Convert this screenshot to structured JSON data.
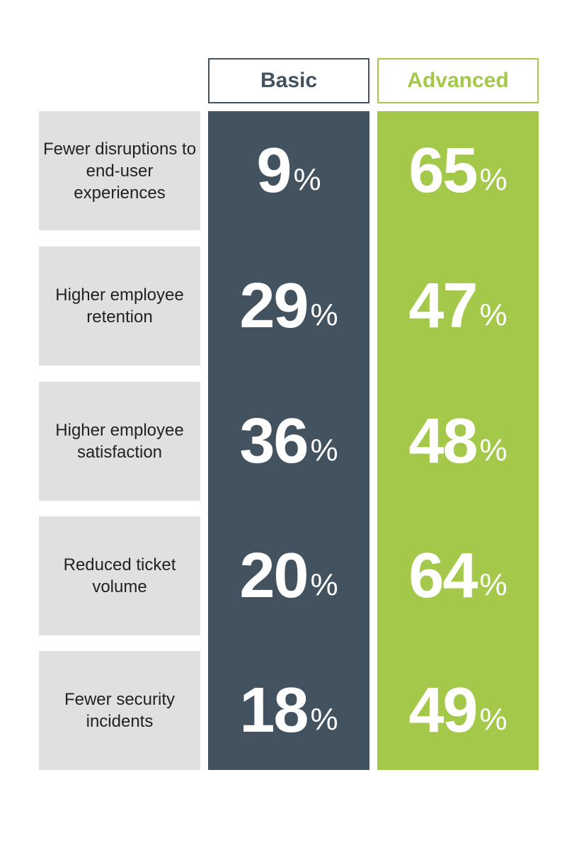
{
  "colors": {
    "basic": "#42525f",
    "advanced": "#a4c94a",
    "label_bg": "#e0e0e0"
  },
  "headers": {
    "basic": "Basic",
    "advanced": "Advanced"
  },
  "rows": [
    {
      "label": "Fewer disruptions to end-user experiences",
      "basic": "9",
      "advanced": "65",
      "unit": "%"
    },
    {
      "label": "Higher employee retention",
      "basic": "29",
      "advanced": "47",
      "unit": "%"
    },
    {
      "label": "Higher employee satisfaction",
      "basic": "36",
      "advanced": "48",
      "unit": "%"
    },
    {
      "label": "Reduced ticket volume",
      "basic": "20",
      "advanced": "64",
      "unit": "%"
    },
    {
      "label": "Fewer security incidents",
      "basic": "18",
      "advanced": "49",
      "unit": "%"
    }
  ],
  "chart_data": {
    "type": "table",
    "categories": [
      "Fewer disruptions to end-user experiences",
      "Higher employee retention",
      "Higher employee satisfaction",
      "Reduced ticket volume",
      "Fewer security incidents"
    ],
    "series": [
      {
        "name": "Basic",
        "values": [
          9,
          29,
          36,
          20,
          18
        ]
      },
      {
        "name": "Advanced",
        "values": [
          65,
          47,
          48,
          64,
          49
        ]
      }
    ],
    "unit": "%"
  }
}
